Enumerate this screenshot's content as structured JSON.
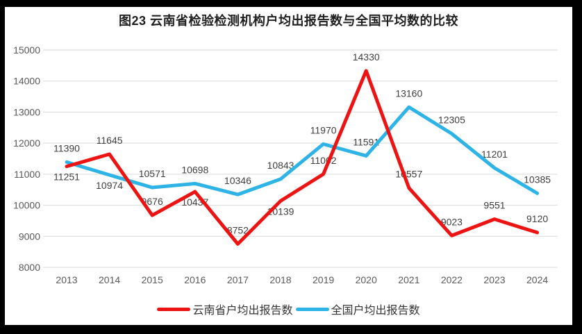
{
  "frame": {
    "border_color": "#000000",
    "canvas_background": "#ffffff"
  },
  "chart_data": {
    "type": "line",
    "title": "图23 云南省检验检测机构户均出报告数与全国平均数的比较",
    "categories": [
      "2013",
      "2014",
      "2015",
      "2016",
      "2017",
      "2018",
      "2019",
      "2020",
      "2021",
      "2022",
      "2023",
      "2024"
    ],
    "series": [
      {
        "name": "云南省户均出报告数",
        "color": "#ec1313",
        "values": [
          11251,
          11645,
          9676,
          10437,
          8752,
          10139,
          11002,
          14330,
          10557,
          9023,
          9551,
          9120
        ],
        "label_placement": [
          "below",
          "above",
          "above",
          "below",
          "above",
          "below",
          "above",
          "above",
          "above",
          "above",
          "above",
          "above"
        ]
      },
      {
        "name": "全国户均出报告数",
        "color": "#2eb3e6",
        "values": [
          11390,
          10974,
          10571,
          10698,
          10346,
          10843,
          11970,
          11591,
          13160,
          12305,
          11201,
          10385
        ],
        "label_placement": [
          "above",
          "below",
          "above",
          "above",
          "above",
          "above",
          "above",
          "above",
          "above",
          "above",
          "above",
          "above"
        ]
      }
    ],
    "y_axis": {
      "min": 8000,
      "max": 15000,
      "step": 1000,
      "tick_labels": [
        "8000",
        "9000",
        "10000",
        "11000",
        "12000",
        "13000",
        "14000",
        "15000"
      ]
    },
    "xlabel": "",
    "ylabel": "",
    "grid": true,
    "gridline_color": "#d9d9d9",
    "axis_label_color": "#595959",
    "data_label_color": "#404040",
    "legend_position": "bottom"
  }
}
